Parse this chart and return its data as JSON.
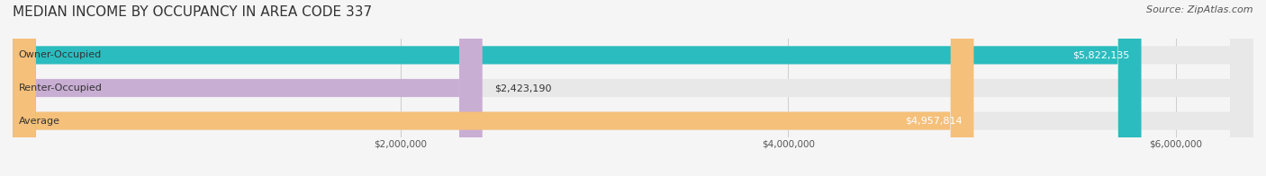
{
  "title": "MEDIAN INCOME BY OCCUPANCY IN AREA CODE 337",
  "source": "Source: ZipAtlas.com",
  "categories": [
    "Owner-Occupied",
    "Renter-Occupied",
    "Average"
  ],
  "values": [
    5822135,
    2423190,
    4957814
  ],
  "bar_colors": [
    "#2bbcbf",
    "#c9aed4",
    "#f5c07a"
  ],
  "label_colors": [
    "#ffffff",
    "#333333",
    "#ffffff"
  ],
  "value_labels": [
    "$5,822,135",
    "$2,423,190",
    "$4,957,814"
  ],
  "xlim": [
    0,
    6400000
  ],
  "xticks": [
    0,
    2000000,
    4000000,
    6000000
  ],
  "xtick_labels": [
    "$2,000,000",
    "$4,000,000",
    "$6,000,000"
  ],
  "background_color": "#f5f5f5",
  "bar_background_color": "#e8e8e8",
  "title_fontsize": 11,
  "source_fontsize": 8,
  "bar_label_fontsize": 8,
  "value_label_fontsize": 8
}
